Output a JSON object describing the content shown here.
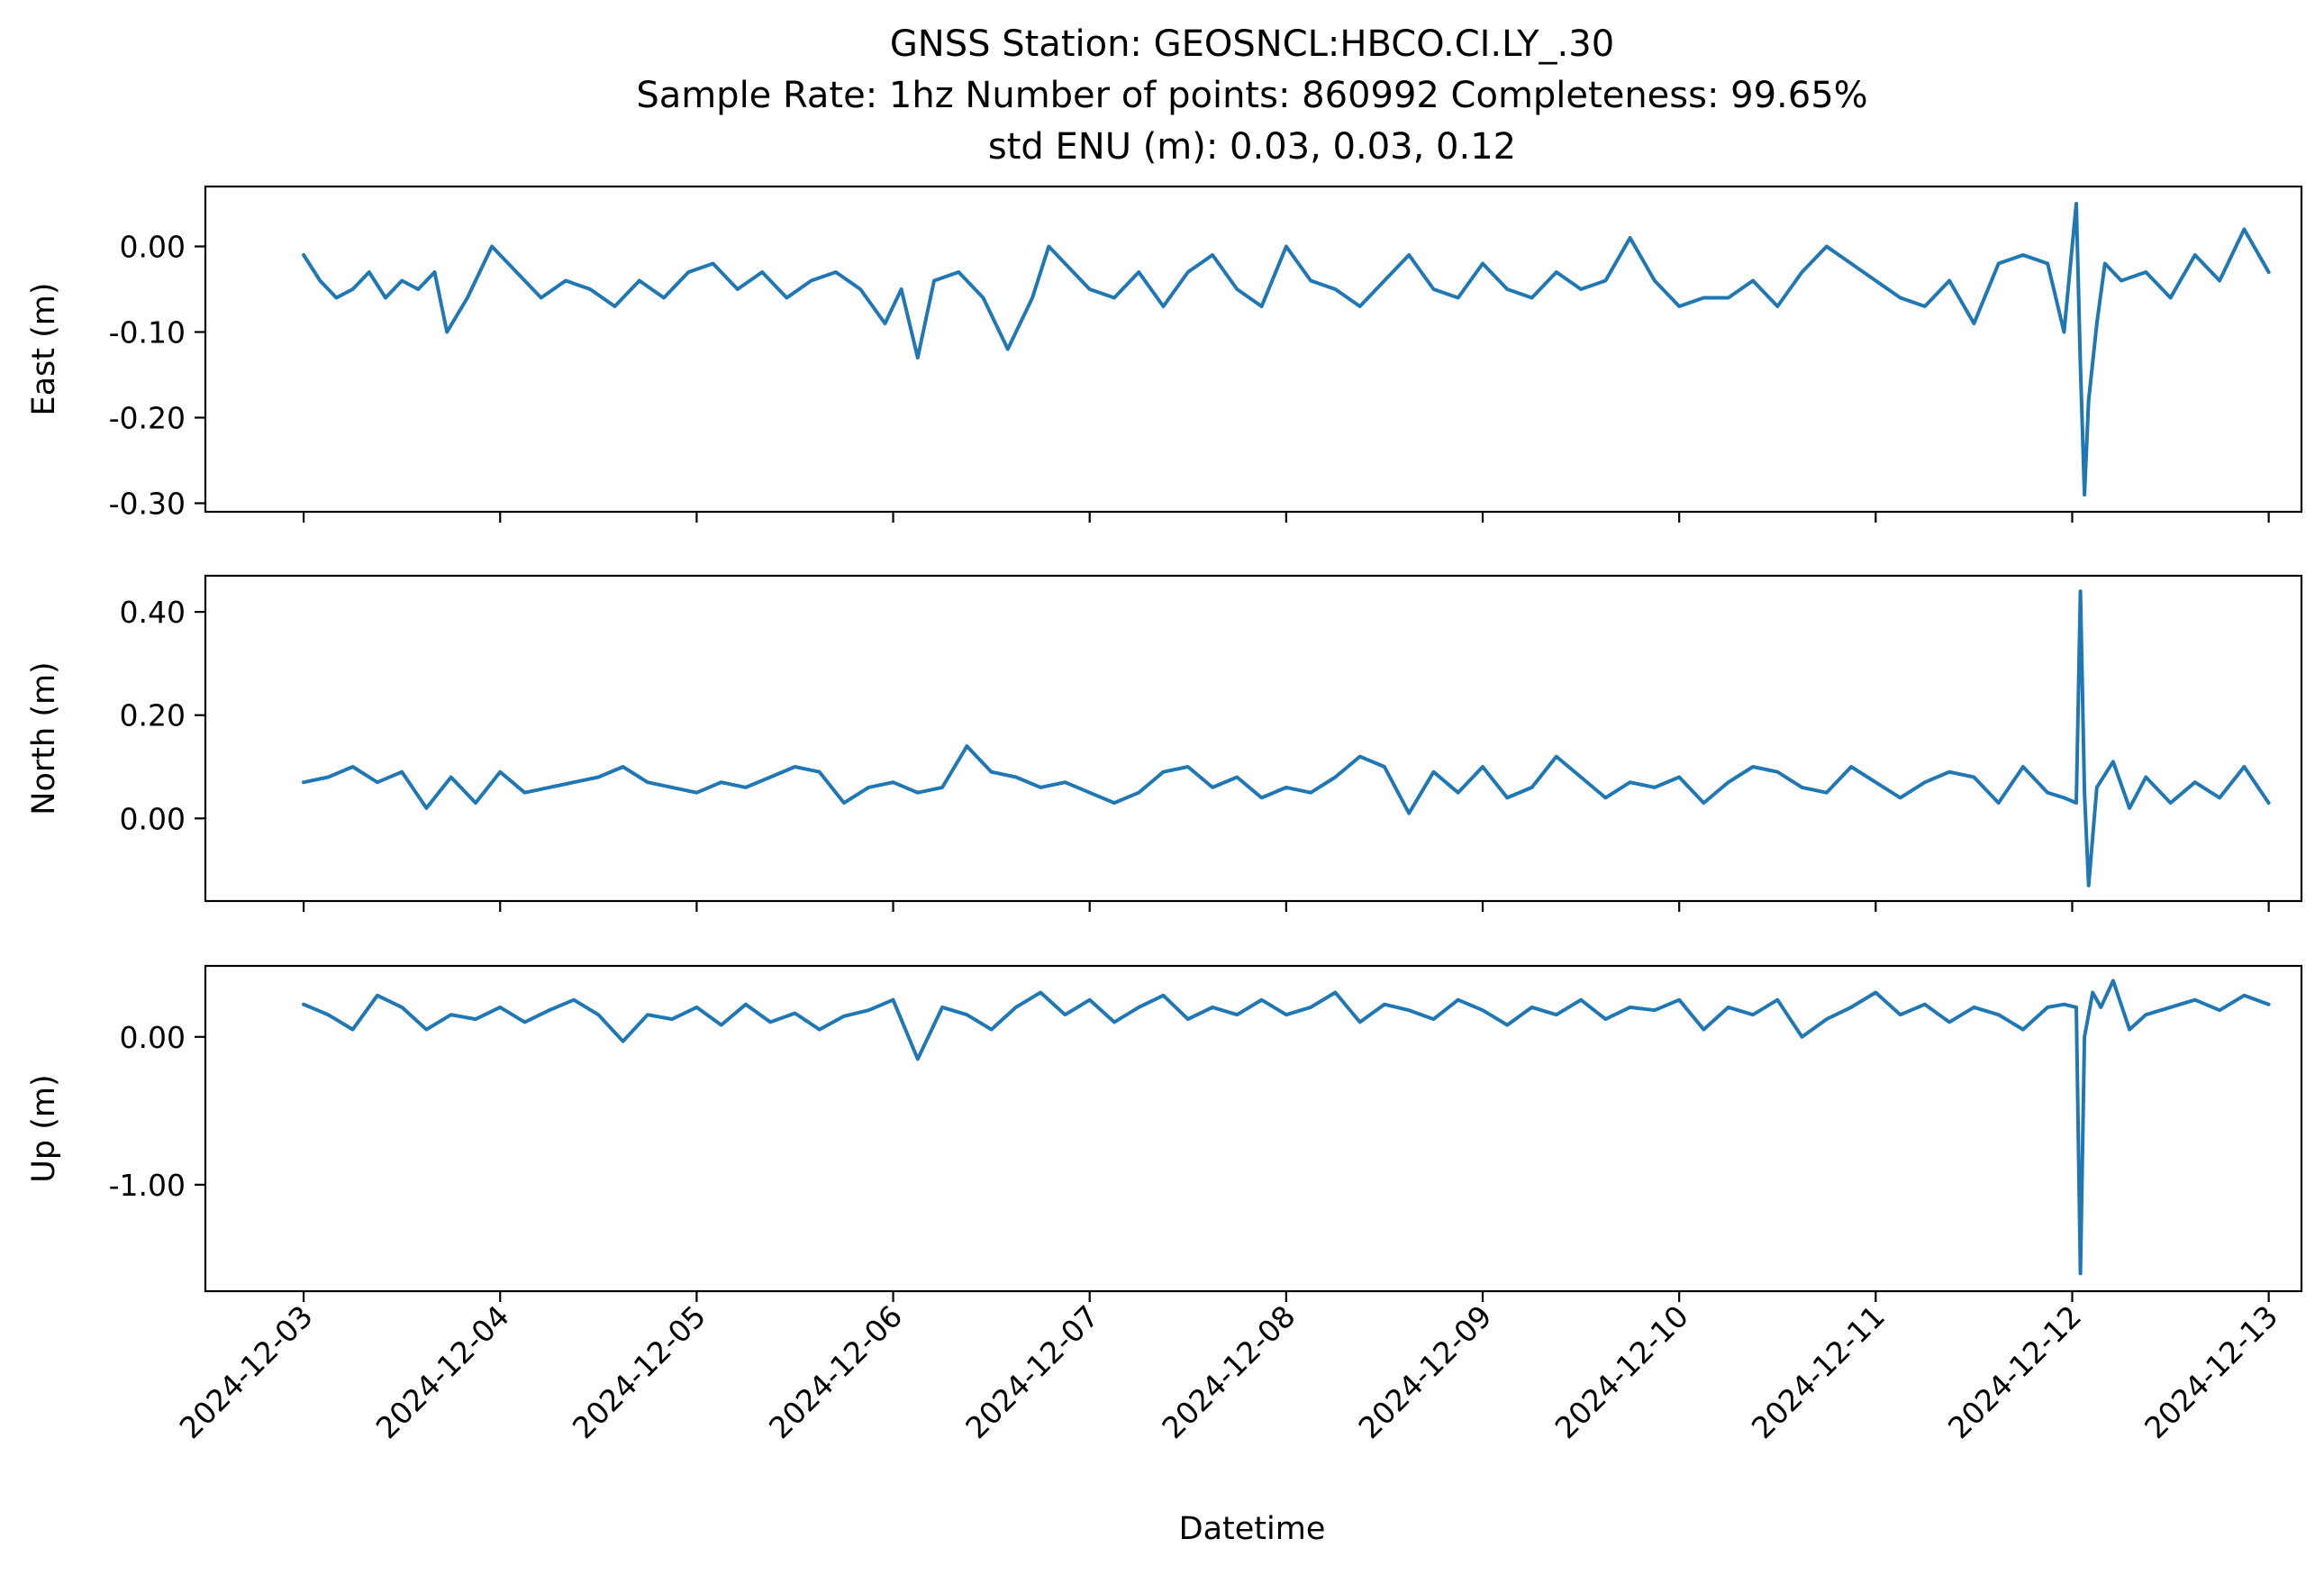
{
  "colors": {
    "series": "#1f77b4",
    "axis": "#000000",
    "background": "#ffffff"
  },
  "chart_data": {
    "type": "line",
    "title_lines": [
      "GNSS Station: GEOSNCL:HBCO.CI.LY_.30",
      "Sample Rate: 1hz   Number of points: 860992    Completeness:  99.65%",
      "std ENU (m):  0.03, 0.03, 0.12"
    ],
    "xlabel": "Datetime",
    "x_ticks": [
      "2024-12-03",
      "2024-12-04",
      "2024-12-05",
      "2024-12-06",
      "2024-12-07",
      "2024-12-08",
      "2024-12-09",
      "2024-12-10",
      "2024-12-11",
      "2024-12-12",
      "2024-12-13"
    ],
    "x_range": [
      "2024-12-02 12:00",
      "2024-12-13 04:00"
    ],
    "grid": false,
    "legend": "none",
    "panels": [
      {
        "ylabel": "East (m)",
        "ylim": [
          -0.31,
          0.07
        ],
        "y_ticks": [
          0.0,
          -0.1,
          -0.2,
          -0.3
        ],
        "y_tick_labels": [
          "0.00",
          "-0.10",
          "-0.20",
          "-0.30"
        ],
        "series": [
          {
            "x": [
              "2024-12-03 00:00",
              "2024-12-03 02:00",
              "2024-12-03 04:00",
              "2024-12-03 06:00",
              "2024-12-03 08:00",
              "2024-12-03 10:00",
              "2024-12-03 12:00",
              "2024-12-03 14:00",
              "2024-12-03 16:00",
              "2024-12-03 17:30",
              "2024-12-03 20:00",
              "2024-12-03 23:00",
              "2024-12-04 02:00",
              "2024-12-04 05:00",
              "2024-12-04 08:00",
              "2024-12-04 11:00",
              "2024-12-04 14:00",
              "2024-12-04 17:00",
              "2024-12-04 20:00",
              "2024-12-04 23:00",
              "2024-12-05 02:00",
              "2024-12-05 05:00",
              "2024-12-05 08:00",
              "2024-12-05 11:00",
              "2024-12-05 14:00",
              "2024-12-05 17:00",
              "2024-12-05 20:00",
              "2024-12-05 23:00",
              "2024-12-06 01:00",
              "2024-12-06 03:00",
              "2024-12-06 05:00",
              "2024-12-06 08:00",
              "2024-12-06 11:00",
              "2024-12-06 14:00",
              "2024-12-06 17:00",
              "2024-12-06 19:00",
              "2024-12-06 22:00",
              "2024-12-07 00:00",
              "2024-12-07 03:00",
              "2024-12-07 06:00",
              "2024-12-07 09:00",
              "2024-12-07 12:00",
              "2024-12-07 15:00",
              "2024-12-07 18:00",
              "2024-12-07 21:00",
              "2024-12-08 00:00",
              "2024-12-08 03:00",
              "2024-12-08 06:00",
              "2024-12-08 09:00",
              "2024-12-08 12:00",
              "2024-12-08 15:00",
              "2024-12-08 18:00",
              "2024-12-08 21:00",
              "2024-12-09 00:00",
              "2024-12-09 03:00",
              "2024-12-09 06:00",
              "2024-12-09 09:00",
              "2024-12-09 12:00",
              "2024-12-09 15:00",
              "2024-12-09 18:00",
              "2024-12-09 21:00",
              "2024-12-10 00:00",
              "2024-12-10 03:00",
              "2024-12-10 06:00",
              "2024-12-10 09:00",
              "2024-12-10 12:00",
              "2024-12-10 15:00",
              "2024-12-10 18:00",
              "2024-12-10 21:00",
              "2024-12-11 00:00",
              "2024-12-11 03:00",
              "2024-12-11 06:00",
              "2024-12-11 09:00",
              "2024-12-11 12:00",
              "2024-12-11 15:00",
              "2024-12-11 18:00",
              "2024-12-11 21:00",
              "2024-12-11 23:00",
              "2024-12-12 00:30",
              "2024-12-12 01:00",
              "2024-12-12 01:30",
              "2024-12-12 02:00",
              "2024-12-12 03:00",
              "2024-12-12 04:00",
              "2024-12-12 06:00",
              "2024-12-12 09:00",
              "2024-12-12 12:00",
              "2024-12-12 15:00",
              "2024-12-12 18:00",
              "2024-12-12 21:00",
              "2024-12-13 00:00"
            ],
            "values": [
              -0.01,
              -0.04,
              -0.06,
              -0.05,
              -0.03,
              -0.06,
              -0.04,
              -0.05,
              -0.03,
              -0.1,
              -0.06,
              0.0,
              -0.03,
              -0.06,
              -0.04,
              -0.05,
              -0.07,
              -0.04,
              -0.06,
              -0.03,
              -0.02,
              -0.05,
              -0.03,
              -0.06,
              -0.04,
              -0.03,
              -0.05,
              -0.09,
              -0.05,
              -0.13,
              -0.04,
              -0.03,
              -0.06,
              -0.12,
              -0.06,
              0.0,
              -0.03,
              -0.05,
              -0.06,
              -0.03,
              -0.07,
              -0.03,
              -0.01,
              -0.05,
              -0.07,
              0.0,
              -0.04,
              -0.05,
              -0.07,
              -0.04,
              -0.01,
              -0.05,
              -0.06,
              -0.02,
              -0.05,
              -0.06,
              -0.03,
              -0.05,
              -0.04,
              0.01,
              -0.04,
              -0.07,
              -0.06,
              -0.06,
              -0.04,
              -0.07,
              -0.03,
              0.0,
              -0.02,
              -0.04,
              -0.06,
              -0.07,
              -0.04,
              -0.09,
              -0.02,
              -0.01,
              -0.02,
              -0.1,
              0.05,
              -0.14,
              -0.29,
              -0.18,
              -0.09,
              -0.02,
              -0.04,
              -0.03,
              -0.06,
              -0.01,
              -0.04,
              0.02,
              -0.03
            ]
          }
        ]
      },
      {
        "ylabel": "North (m)",
        "ylim": [
          -0.16,
          0.47
        ],
        "y_ticks": [
          0.0,
          0.2,
          0.4
        ],
        "y_tick_labels": [
          "0.00",
          "0.20",
          "0.40"
        ],
        "series": [
          {
            "x": [
              "2024-12-03 00:00",
              "2024-12-03 03:00",
              "2024-12-03 06:00",
              "2024-12-03 09:00",
              "2024-12-03 12:00",
              "2024-12-03 15:00",
              "2024-12-03 18:00",
              "2024-12-03 21:00",
              "2024-12-04 00:00",
              "2024-12-04 03:00",
              "2024-12-04 06:00",
              "2024-12-04 09:00",
              "2024-12-04 12:00",
              "2024-12-04 15:00",
              "2024-12-04 18:00",
              "2024-12-04 21:00",
              "2024-12-05 00:00",
              "2024-12-05 03:00",
              "2024-12-05 06:00",
              "2024-12-05 09:00",
              "2024-12-05 12:00",
              "2024-12-05 15:00",
              "2024-12-05 18:00",
              "2024-12-05 21:00",
              "2024-12-06 00:00",
              "2024-12-06 03:00",
              "2024-12-06 06:00",
              "2024-12-06 09:00",
              "2024-12-06 12:00",
              "2024-12-06 15:00",
              "2024-12-06 18:00",
              "2024-12-06 21:00",
              "2024-12-07 00:00",
              "2024-12-07 03:00",
              "2024-12-07 06:00",
              "2024-12-07 09:00",
              "2024-12-07 12:00",
              "2024-12-07 15:00",
              "2024-12-07 18:00",
              "2024-12-07 21:00",
              "2024-12-08 00:00",
              "2024-12-08 03:00",
              "2024-12-08 06:00",
              "2024-12-08 09:00",
              "2024-12-08 12:00",
              "2024-12-08 15:00",
              "2024-12-08 18:00",
              "2024-12-08 21:00",
              "2024-12-09 00:00",
              "2024-12-09 03:00",
              "2024-12-09 06:00",
              "2024-12-09 09:00",
              "2024-12-09 12:00",
              "2024-12-09 15:00",
              "2024-12-09 18:00",
              "2024-12-09 21:00",
              "2024-12-10 00:00",
              "2024-12-10 03:00",
              "2024-12-10 06:00",
              "2024-12-10 09:00",
              "2024-12-10 12:00",
              "2024-12-10 15:00",
              "2024-12-10 18:00",
              "2024-12-10 21:00",
              "2024-12-11 00:00",
              "2024-12-11 03:00",
              "2024-12-11 06:00",
              "2024-12-11 09:00",
              "2024-12-11 12:00",
              "2024-12-11 15:00",
              "2024-12-11 18:00",
              "2024-12-11 21:00",
              "2024-12-11 23:00",
              "2024-12-12 00:30",
              "2024-12-12 01:00",
              "2024-12-12 01:30",
              "2024-12-12 02:00",
              "2024-12-12 03:00",
              "2024-12-12 05:00",
              "2024-12-12 07:00",
              "2024-12-12 09:00",
              "2024-12-12 12:00",
              "2024-12-12 15:00",
              "2024-12-12 18:00",
              "2024-12-12 21:00",
              "2024-12-13 00:00"
            ],
            "values": [
              0.07,
              0.08,
              0.1,
              0.07,
              0.09,
              0.02,
              0.08,
              0.03,
              0.09,
              0.05,
              0.06,
              0.07,
              0.08,
              0.1,
              0.07,
              0.06,
              0.05,
              0.07,
              0.06,
              0.08,
              0.1,
              0.09,
              0.03,
              0.06,
              0.07,
              0.05,
              0.06,
              0.14,
              0.09,
              0.08,
              0.06,
              0.07,
              0.05,
              0.03,
              0.05,
              0.09,
              0.1,
              0.06,
              0.08,
              0.04,
              0.06,
              0.05,
              0.08,
              0.12,
              0.1,
              0.01,
              0.09,
              0.05,
              0.1,
              0.04,
              0.06,
              0.12,
              0.08,
              0.04,
              0.07,
              0.06,
              0.08,
              0.03,
              0.07,
              0.1,
              0.09,
              0.06,
              0.05,
              0.1,
              0.07,
              0.04,
              0.07,
              0.09,
              0.08,
              0.03,
              0.1,
              0.05,
              0.04,
              0.03,
              0.44,
              0.05,
              -0.13,
              0.06,
              0.11,
              0.02,
              0.08,
              0.03,
              0.07,
              0.04,
              0.1,
              0.03
            ]
          }
        ]
      },
      {
        "ylabel": "Up (m)",
        "ylim": [
          -1.72,
          0.48
        ],
        "y_ticks": [
          0.0,
          -1.0
        ],
        "y_tick_labels": [
          "0.00",
          "-1.00"
        ],
        "series": [
          {
            "x": [
              "2024-12-03 00:00",
              "2024-12-03 03:00",
              "2024-12-03 06:00",
              "2024-12-03 09:00",
              "2024-12-03 12:00",
              "2024-12-03 15:00",
              "2024-12-03 18:00",
              "2024-12-03 21:00",
              "2024-12-04 00:00",
              "2024-12-04 03:00",
              "2024-12-04 06:00",
              "2024-12-04 09:00",
              "2024-12-04 12:00",
              "2024-12-04 15:00",
              "2024-12-04 18:00",
              "2024-12-04 21:00",
              "2024-12-05 00:00",
              "2024-12-05 03:00",
              "2024-12-05 06:00",
              "2024-12-05 09:00",
              "2024-12-05 12:00",
              "2024-12-05 15:00",
              "2024-12-05 18:00",
              "2024-12-05 21:00",
              "2024-12-06 00:00",
              "2024-12-06 03:00",
              "2024-12-06 06:00",
              "2024-12-06 09:00",
              "2024-12-06 12:00",
              "2024-12-06 15:00",
              "2024-12-06 18:00",
              "2024-12-06 21:00",
              "2024-12-07 00:00",
              "2024-12-07 03:00",
              "2024-12-07 06:00",
              "2024-12-07 09:00",
              "2024-12-07 12:00",
              "2024-12-07 15:00",
              "2024-12-07 18:00",
              "2024-12-07 21:00",
              "2024-12-08 00:00",
              "2024-12-08 03:00",
              "2024-12-08 06:00",
              "2024-12-08 09:00",
              "2024-12-08 12:00",
              "2024-12-08 15:00",
              "2024-12-08 18:00",
              "2024-12-08 21:00",
              "2024-12-09 00:00",
              "2024-12-09 03:00",
              "2024-12-09 06:00",
              "2024-12-09 09:00",
              "2024-12-09 12:00",
              "2024-12-09 15:00",
              "2024-12-09 18:00",
              "2024-12-09 21:00",
              "2024-12-10 00:00",
              "2024-12-10 03:00",
              "2024-12-10 06:00",
              "2024-12-10 09:00",
              "2024-12-10 12:00",
              "2024-12-10 15:00",
              "2024-12-10 18:00",
              "2024-12-10 21:00",
              "2024-12-11 00:00",
              "2024-12-11 03:00",
              "2024-12-11 06:00",
              "2024-12-11 09:00",
              "2024-12-11 12:00",
              "2024-12-11 15:00",
              "2024-12-11 18:00",
              "2024-12-11 21:00",
              "2024-12-11 23:00",
              "2024-12-12 00:30",
              "2024-12-12 01:00",
              "2024-12-12 01:30",
              "2024-12-12 02:30",
              "2024-12-12 03:30",
              "2024-12-12 05:00",
              "2024-12-12 07:00",
              "2024-12-12 09:00",
              "2024-12-12 12:00",
              "2024-12-12 15:00",
              "2024-12-12 18:00",
              "2024-12-12 21:00",
              "2024-12-13 00:00"
            ],
            "values": [
              0.22,
              0.15,
              0.05,
              0.28,
              0.2,
              0.05,
              0.15,
              0.12,
              0.2,
              0.1,
              0.18,
              0.25,
              0.15,
              -0.03,
              0.15,
              0.12,
              0.2,
              0.08,
              0.22,
              0.1,
              0.16,
              0.05,
              0.14,
              0.18,
              0.25,
              -0.15,
              0.2,
              0.15,
              0.05,
              0.2,
              0.3,
              0.15,
              0.25,
              0.1,
              0.2,
              0.28,
              0.12,
              0.2,
              0.15,
              0.25,
              0.15,
              0.2,
              0.3,
              0.1,
              0.22,
              0.18,
              0.12,
              0.25,
              0.18,
              0.08,
              0.2,
              0.15,
              0.25,
              0.12,
              0.2,
              0.18,
              0.25,
              0.05,
              0.2,
              0.15,
              0.25,
              0.0,
              0.12,
              0.2,
              0.3,
              0.15,
              0.22,
              0.1,
              0.2,
              0.15,
              0.05,
              0.2,
              0.22,
              0.2,
              -1.6,
              0.0,
              0.3,
              0.2,
              0.38,
              0.05,
              0.15,
              0.2,
              0.25,
              0.18,
              0.28,
              0.22
            ]
          }
        ]
      }
    ]
  }
}
